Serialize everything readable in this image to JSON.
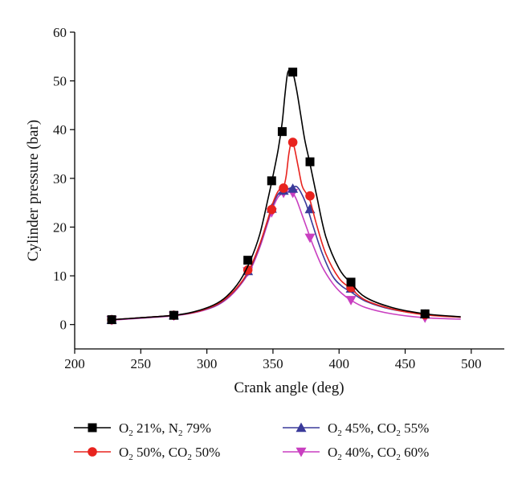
{
  "chart_data": {
    "type": "line",
    "title": "",
    "xlabel": "Crank angle (deg)",
    "ylabel": "Cylinder pressure (bar)",
    "xlim": [
      200,
      525
    ],
    "ylim": [
      -5,
      60
    ],
    "xticks": [
      200,
      250,
      300,
      350,
      400,
      450,
      500
    ],
    "yticks": [
      0,
      10,
      20,
      30,
      40,
      50,
      60
    ],
    "xtick_labels": [
      "200",
      "250",
      "300",
      "350",
      "400",
      "450",
      "500"
    ],
    "ytick_labels": [
      "0",
      "10",
      "20",
      "30",
      "40",
      "50",
      "60"
    ],
    "grid": false,
    "legend_position": "bottom",
    "series": [
      {
        "name": "O2 21%, N2 79%",
        "legend": {
          "pre": "O",
          "sub1": "2",
          "mid": " 21%, N",
          "sub2": "2",
          "post": " 79%"
        },
        "color": "#000000",
        "marker": "square",
        "x": [
          228,
          275,
          331,
          349,
          357,
          365,
          378,
          409,
          465
        ],
        "y": [
          1.0,
          1.9,
          13.2,
          29.5,
          39.6,
          51.8,
          33.4,
          8.7,
          2.2
        ],
        "curve_x": [
          228,
          250,
          275,
          290,
          305,
          315,
          325,
          333,
          340,
          346,
          350,
          354,
          357,
          359,
          361,
          363,
          365,
          368,
          371,
          374,
          378,
          383,
          390,
          400,
          409,
          420,
          440,
          465,
          492
        ],
        "curve_y": [
          1.0,
          1.4,
          1.9,
          2.6,
          4.0,
          5.8,
          9.0,
          13.2,
          18.5,
          25.5,
          30.5,
          36.0,
          41.5,
          47.0,
          51.5,
          52.2,
          51.8,
          48.0,
          43.0,
          38.0,
          33.0,
          26.5,
          18.0,
          11.5,
          8.5,
          5.6,
          3.5,
          2.2,
          1.6
        ]
      },
      {
        "name": "O2 50%, CO2 50%",
        "legend": {
          "pre": "O",
          "sub1": "2",
          "mid": " 50%, CO",
          "sub2": "2",
          "post": " 50%"
        },
        "color": "#e8231e",
        "marker": "circle",
        "x": [
          228,
          275,
          331,
          349,
          358,
          365,
          378,
          409,
          465
        ],
        "y": [
          1.0,
          1.9,
          11.2,
          23.6,
          28.0,
          37.4,
          26.4,
          7.6,
          2.0
        ],
        "curve_x": [
          228,
          250,
          275,
          290,
          305,
          315,
          325,
          333,
          340,
          346,
          350,
          354,
          358,
          360,
          362,
          364,
          366,
          369,
          372,
          375,
          378,
          383,
          390,
          400,
          409,
          420,
          440,
          465,
          492
        ],
        "curve_y": [
          1.0,
          1.4,
          1.9,
          2.5,
          3.8,
          5.5,
          8.3,
          11.8,
          16.5,
          21.5,
          25.0,
          27.4,
          28.3,
          30.5,
          35.0,
          37.5,
          36.5,
          32.5,
          28.5,
          27.0,
          25.5,
          20.5,
          14.5,
          9.5,
          7.4,
          5.0,
          3.2,
          2.0,
          1.5
        ]
      },
      {
        "name": "O2 45%, CO2 55%",
        "legend": {
          "pre": "O",
          "sub1": "2",
          "mid": " 45%, CO",
          "sub2": "2",
          "post": " 55%"
        },
        "color": "#3a3a9a",
        "marker": "triangle-up",
        "x": [
          228,
          275,
          331,
          349,
          358,
          365,
          378,
          409,
          465
        ],
        "y": [
          1.0,
          1.9,
          11.0,
          23.8,
          27.5,
          27.9,
          23.7,
          7.4,
          2.1
        ],
        "curve_x": [
          228,
          250,
          275,
          290,
          305,
          315,
          325,
          333,
          340,
          346,
          350,
          354,
          358,
          362,
          365,
          368,
          371,
          375,
          380,
          387,
          395,
          402,
          409,
          420,
          440,
          465,
          492
        ],
        "curve_y": [
          1.0,
          1.4,
          1.9,
          2.5,
          3.7,
          5.4,
          8.2,
          11.6,
          16.3,
          21.3,
          24.6,
          26.8,
          27.5,
          27.9,
          28.2,
          28.3,
          27.2,
          24.8,
          20.5,
          14.8,
          10.0,
          7.9,
          6.7,
          4.8,
          3.1,
          2.1,
          1.5
        ]
      },
      {
        "name": "O2 40%, CO2 60%",
        "legend": {
          "pre": "O",
          "sub1": "2",
          "mid": " 40%, CO",
          "sub2": "2",
          "post": " 60%"
        },
        "color": "#c93fc0",
        "marker": "triangle-down",
        "x": [
          228,
          275,
          331,
          349,
          358,
          365,
          378,
          409,
          465
        ],
        "y": [
          0.9,
          1.8,
          10.9,
          23.0,
          27.0,
          27.0,
          17.8,
          5.0,
          1.4
        ],
        "curve_x": [
          228,
          250,
          275,
          290,
          305,
          315,
          325,
          333,
          340,
          346,
          350,
          354,
          358,
          362,
          365,
          368,
          372,
          376,
          380,
          387,
          395,
          402,
          409,
          420,
          440,
          465,
          492
        ],
        "curve_y": [
          0.9,
          1.3,
          1.8,
          2.4,
          3.6,
          5.2,
          8.0,
          11.3,
          15.8,
          20.8,
          24.0,
          26.2,
          27.0,
          27.3,
          27.0,
          25.5,
          22.5,
          19.5,
          16.5,
          12.0,
          8.5,
          6.4,
          5.0,
          3.5,
          2.2,
          1.4,
          1.1
        ]
      }
    ]
  }
}
